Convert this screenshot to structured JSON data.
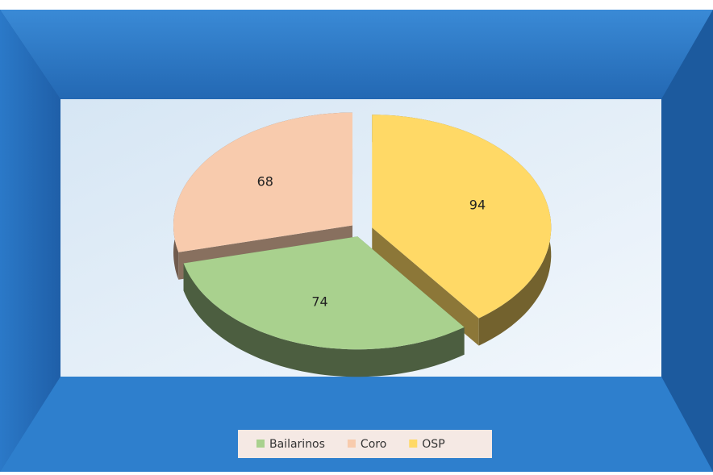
{
  "chart_data": {
    "type": "pie",
    "categories": [
      "Bailarinos",
      "Coro",
      "OSP"
    ],
    "values": [
      74,
      68,
      94
    ],
    "colors": [
      "#a9d18e",
      "#f8cbad",
      "#ffd966"
    ],
    "legend": "bottom"
  }
}
